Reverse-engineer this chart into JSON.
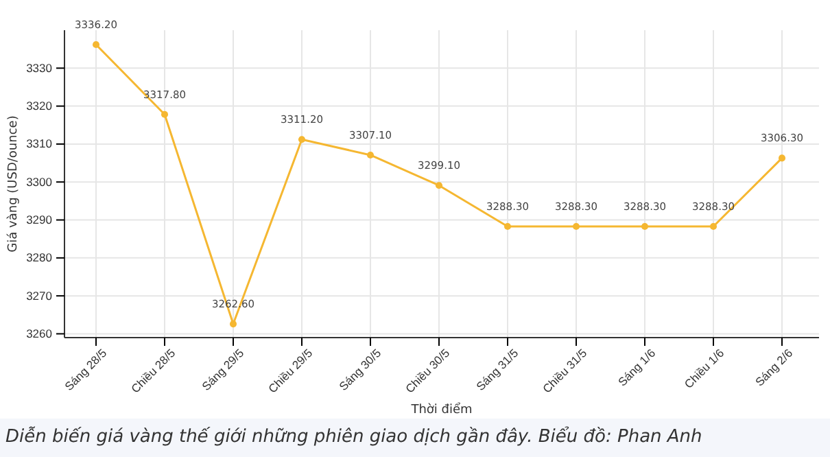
{
  "chart_data": {
    "type": "line",
    "xlabel": "Thời điểm",
    "ylabel": "Giá vàng (USD/ounce)",
    "annotations": [
      "Diễn biến giá vàng thế giới những phiên giao dịch gần đây. Biểu đồ: Phan Anh"
    ],
    "categories": [
      "Sáng 28/5",
      "Chiều 28/5",
      "Sáng 29/5",
      "Chiều 29/5",
      "Sáng 30/5",
      "Chiều 30/5",
      "Sáng 31/5",
      "Chiều 31/5",
      "Sáng 1/6",
      "Chiều 1/6",
      "Sáng 2/6"
    ],
    "series": [
      {
        "color": "#f5b731",
        "values": [
          3336.2,
          3317.8,
          3262.6,
          3311.2,
          3307.1,
          3299.1,
          3288.3,
          3288.3,
          3288.3,
          3288.3,
          3306.3
        ],
        "value_labels": [
          "3336.20",
          "3317.80",
          "3262.60",
          "3311.20",
          "3307.10",
          "3299.10",
          "3288.30",
          "3288.30",
          "3288.30",
          "3288.30",
          "3306.30"
        ]
      }
    ],
    "ylim": [
      3259,
      3340
    ],
    "yticks": [
      3260,
      3270,
      3280,
      3290,
      3300,
      3310,
      3320,
      3330
    ],
    "grid": true,
    "marker": "circle",
    "line_style": "solid"
  }
}
